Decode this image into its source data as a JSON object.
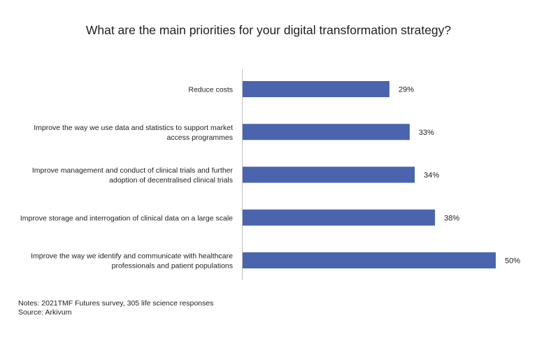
{
  "chart_data": {
    "type": "bar",
    "orientation": "horizontal",
    "title": "What are the main priorities for your digital transformation strategy?",
    "categories": [
      [
        "Reduce costs"
      ],
      [
        "Improve the way we use data and statistics to support market",
        "access programmes"
      ],
      [
        "Improve management and conduct of clinical trials and further",
        "adoption of decentralised clinical trials"
      ],
      [
        "Improve storage and interrogation of clinical data on a large scale"
      ],
      [
        "Improve the way we identify and communicate with healthcare",
        "professionals and patient populations"
      ]
    ],
    "values": [
      29,
      33,
      34,
      38,
      50
    ],
    "value_labels": [
      "29%",
      "33%",
      "34%",
      "38%",
      "50%"
    ],
    "unit": "%",
    "xlim": [
      0,
      50
    ],
    "bar_color": "#4a64ad",
    "grid": false,
    "legend": "none"
  },
  "notes": {
    "line1": "Notes: 2021TMF Futures survey, 305 life science responses",
    "line2": "Source: Arkivum"
  }
}
